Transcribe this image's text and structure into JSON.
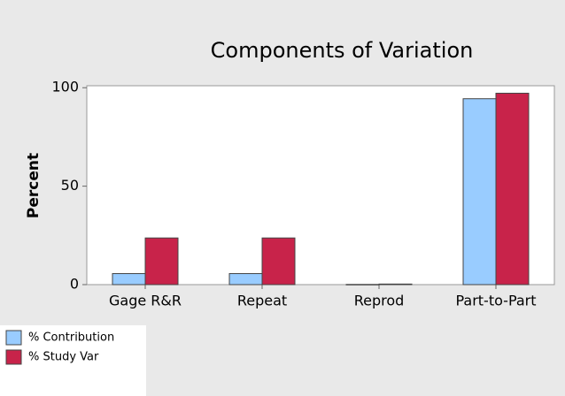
{
  "chart_data": {
    "type": "bar",
    "title": "Components of Variation",
    "y_label": "Percent",
    "categories": [
      "Gage R&R",
      "Repeat",
      "Reprod",
      "Part-to-Part"
    ],
    "series": [
      {
        "name": "% Contribution",
        "color": "#99ccff",
        "values": [
          5.6,
          5.6,
          0.1,
          94.4
        ]
      },
      {
        "name": "% Study Var",
        "color": "#c8234a",
        "values": [
          23.7,
          23.7,
          0.3,
          97.2
        ]
      }
    ],
    "ylim": [
      0,
      101
    ],
    "yticks": [
      0,
      50,
      100
    ]
  }
}
